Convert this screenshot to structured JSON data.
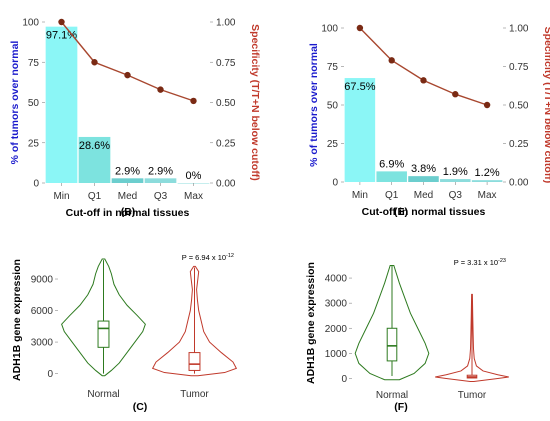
{
  "colors": {
    "left_axis": "#1a1acc",
    "right_axis": "#c0392b",
    "line": "#a8472f",
    "point": "#7a2a14",
    "normal": "#2d7a1f",
    "tumor": "#c0392b",
    "bar_shades": [
      "#7ef5f5",
      "#6fe0dc",
      "#5cc9c9",
      "#7fd8d8",
      "#7fd8d8"
    ]
  },
  "chart_data": [
    {
      "panel": "(B)",
      "type": "bar",
      "categories": [
        "Min",
        "Q1",
        "Med",
        "Q3",
        "Max"
      ],
      "values": [
        97.1,
        28.6,
        2.9,
        2.9,
        0
      ],
      "value_labels": [
        "97.1%",
        "28.6%",
        "2.9%",
        "2.9%",
        "0%"
      ],
      "ylim": [
        0,
        100
      ],
      "yticks": [
        "0",
        "25",
        "50",
        "75",
        "100"
      ],
      "xlabel": "Cut-off in normal tissues",
      "ylabel": "% of tumors over normal",
      "secondary": {
        "type": "line",
        "values": [
          1.0,
          0.75,
          0.67,
          0.58,
          0.51
        ],
        "ylim": [
          0,
          1
        ],
        "yticks": [
          "0.00",
          "0.25",
          "0.50",
          "0.75",
          "1.00"
        ],
        "ylabel": "Specificity (T/T+N below cutoff)"
      }
    },
    {
      "panel": "(E)",
      "type": "bar",
      "categories": [
        "Min",
        "Q1",
        "Med",
        "Q3",
        "Max"
      ],
      "values": [
        67.5,
        6.9,
        3.8,
        1.9,
        1.2
      ],
      "value_labels": [
        "67.5%",
        "6.9%",
        "3.8%",
        "1.9%",
        "1.2%"
      ],
      "ylim": [
        0,
        100
      ],
      "yticks": [
        "0",
        "25",
        "50",
        "75",
        "100"
      ],
      "xlabel": "Cut-off in normal tissues",
      "ylabel": "% of tumors over normal",
      "secondary": {
        "type": "line",
        "values": [
          1.0,
          0.79,
          0.66,
          0.57,
          0.5
        ],
        "ylim": [
          0,
          1
        ],
        "yticks": [
          "0.00",
          "0.25",
          "0.50",
          "0.75",
          "1.00"
        ],
        "ylabel": "Specificity (T/T+N below cutoff)"
      }
    },
    {
      "panel": "(C)",
      "type": "violin",
      "categories": [
        "Normal",
        "Tumor"
      ],
      "ylabel": "ADH1B gene expression",
      "ylim": [
        -800,
        11000
      ],
      "yticks": [
        0,
        3000,
        6000,
        9000
      ],
      "pvalue": {
        "prefix": "P = 6.94 x 10",
        "exponent": "-12"
      },
      "groups": [
        {
          "name": "Normal",
          "whisker": [
            0,
            10800
          ],
          "q1": 2500,
          "median": 4300,
          "q3": 5000,
          "density": [
            [
              -200,
              0.01
            ],
            [
              300,
              0.06
            ],
            [
              1000,
              0.12
            ],
            [
              2000,
              0.18
            ],
            [
              3000,
              0.24
            ],
            [
              4000,
              0.3
            ],
            [
              4700,
              0.32
            ],
            [
              5500,
              0.26
            ],
            [
              6500,
              0.18
            ],
            [
              7500,
              0.12
            ],
            [
              8500,
              0.08
            ],
            [
              9500,
              0.06
            ],
            [
              10200,
              0.04
            ],
            [
              10900,
              0.01
            ]
          ]
        },
        {
          "name": "Tumor",
          "whisker": [
            0,
            10100
          ],
          "q1": 300,
          "median": 900,
          "q3": 2000,
          "density": [
            [
              -200,
              0.04
            ],
            [
              100,
              0.36
            ],
            [
              500,
              0.5
            ],
            [
              1100,
              0.46
            ],
            [
              2000,
              0.32
            ],
            [
              3000,
              0.18
            ],
            [
              4000,
              0.11
            ],
            [
              5000,
              0.08
            ],
            [
              6000,
              0.05
            ],
            [
              7000,
              0.035
            ],
            [
              8000,
              0.025
            ],
            [
              9000,
              0.04
            ],
            [
              9700,
              0.05
            ],
            [
              10200,
              0.01
            ]
          ]
        }
      ]
    },
    {
      "panel": "(F)",
      "type": "violin",
      "categories": [
        "Normal",
        "Tumor"
      ],
      "ylabel": "ADH1B gene expression",
      "ylim": [
        -180,
        4600
      ],
      "yticks": [
        0,
        1000,
        2000,
        3000,
        4000
      ],
      "pvalue": {
        "prefix": "P = 3.31 x 10",
        "exponent": "-23"
      },
      "groups": [
        {
          "name": "Normal",
          "whisker": [
            100,
            4500
          ],
          "q1": 700,
          "median": 1300,
          "q3": 2000,
          "density": [
            [
              -50,
              0.02
            ],
            [
              200,
              0.06
            ],
            [
              600,
              0.09
            ],
            [
              1000,
              0.1
            ],
            [
              1400,
              0.09
            ],
            [
              2000,
              0.07
            ],
            [
              2600,
              0.05
            ],
            [
              3200,
              0.035
            ],
            [
              3800,
              0.02
            ],
            [
              4500,
              0.005
            ]
          ]
        },
        {
          "name": "Tumor",
          "whisker": [
            0,
            3350
          ],
          "q1": 20,
          "median": 60,
          "q3": 130,
          "density": [
            [
              -120,
              0.05
            ],
            [
              0,
              0.7
            ],
            [
              60,
              1.0
            ],
            [
              150,
              0.7
            ],
            [
              300,
              0.3
            ],
            [
              500,
              0.12
            ],
            [
              800,
              0.06
            ],
            [
              1200,
              0.04
            ],
            [
              1800,
              0.03
            ],
            [
              2500,
              0.02
            ],
            [
              3350,
              0.01
            ]
          ]
        }
      ]
    }
  ]
}
